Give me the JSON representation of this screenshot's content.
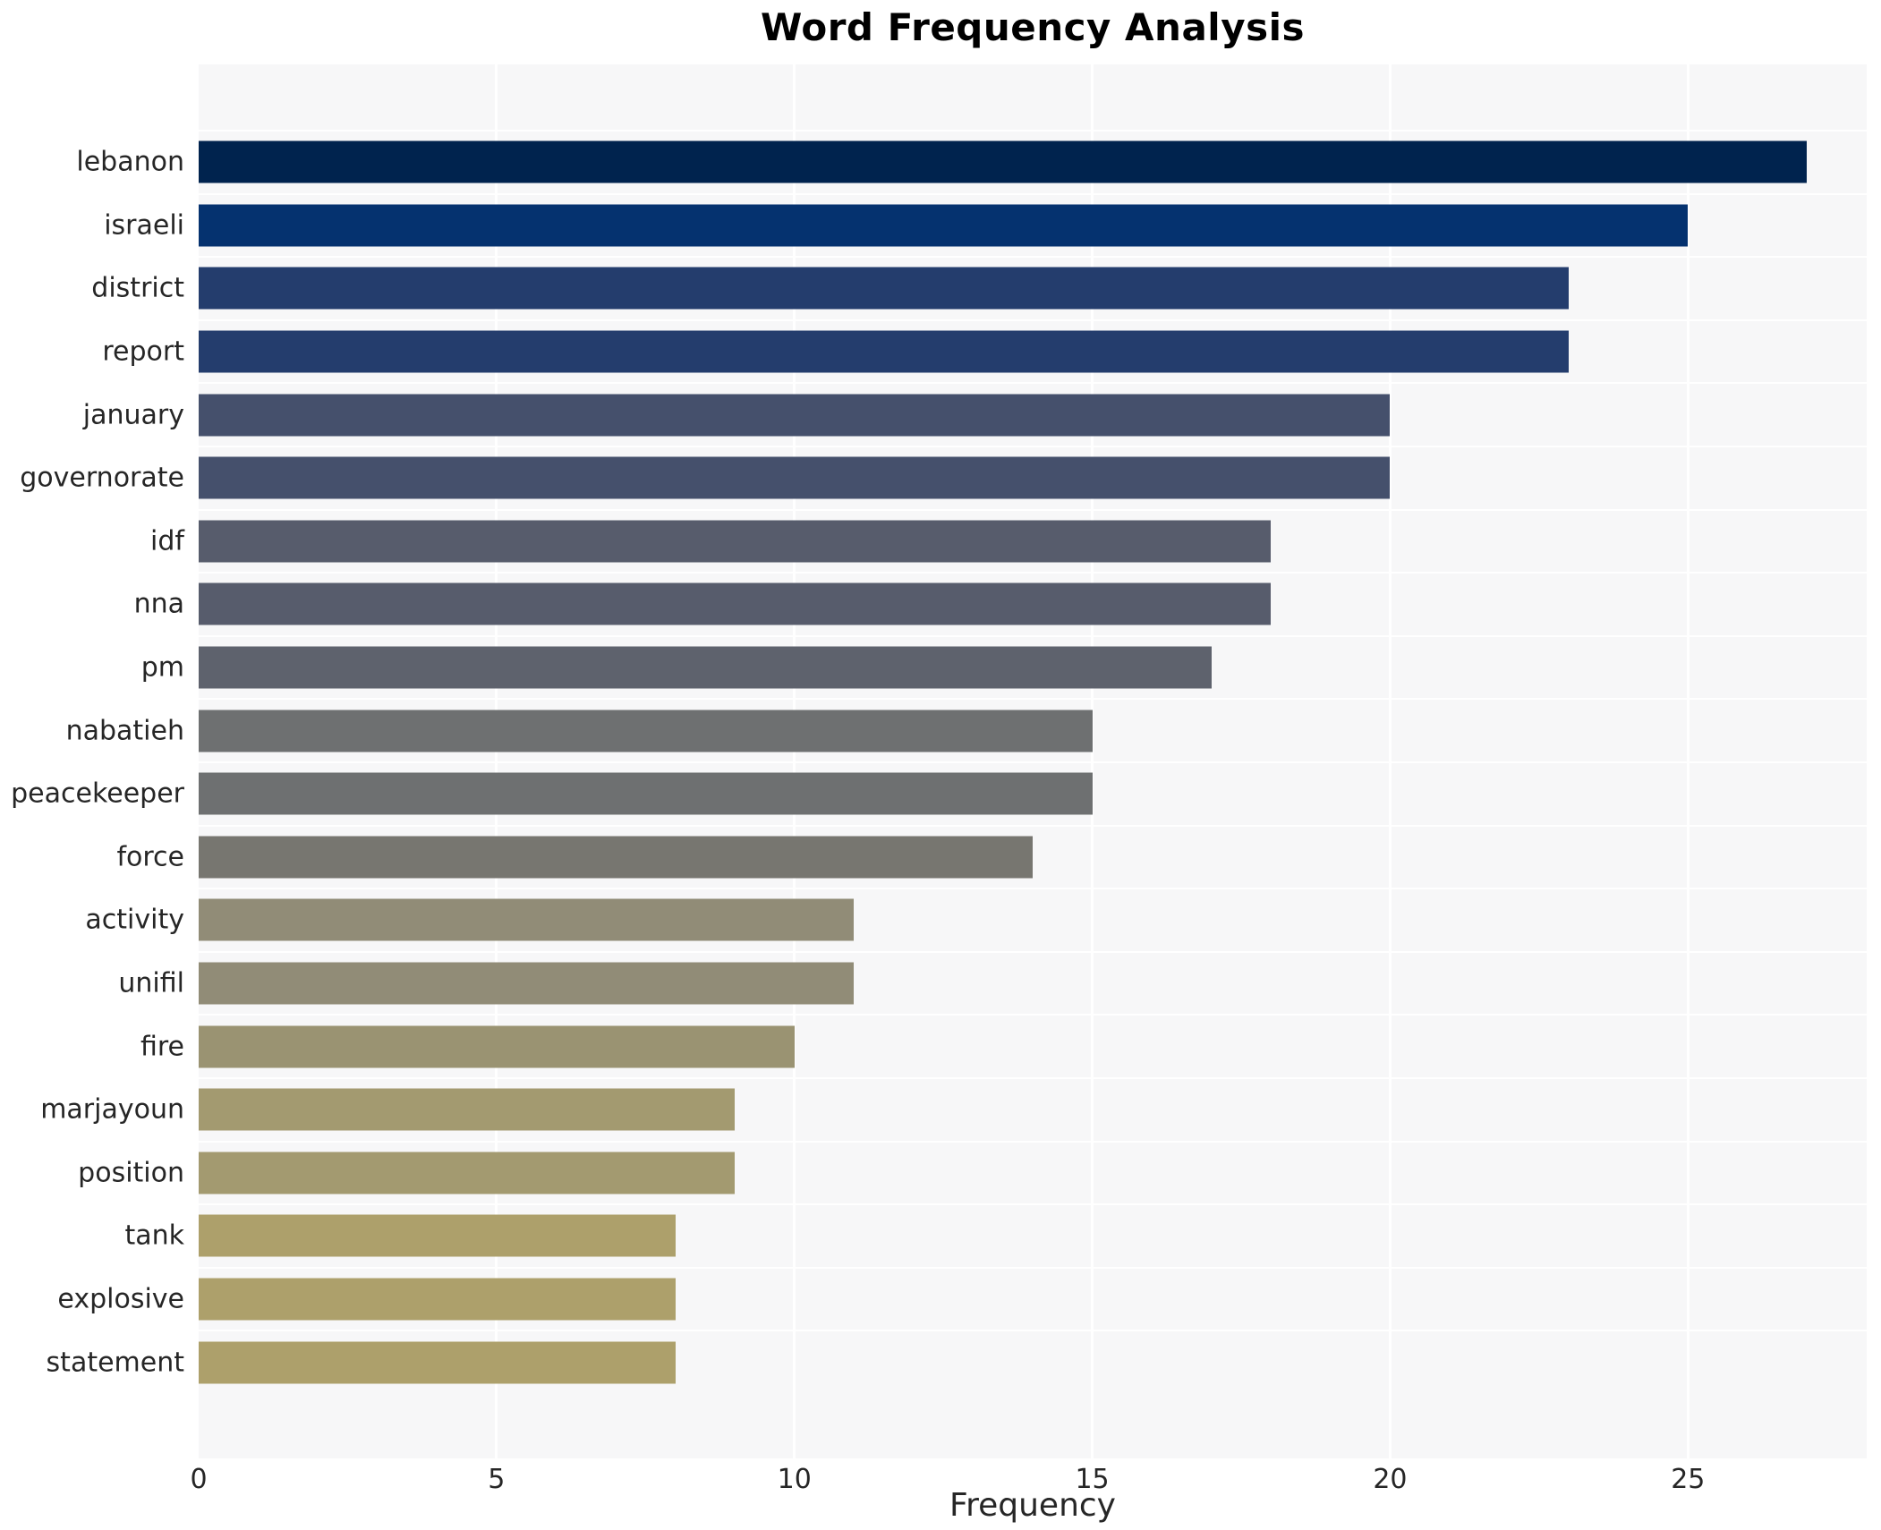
{
  "chart_data": {
    "type": "bar",
    "orientation": "horizontal",
    "title": "Word Frequency Analysis",
    "xlabel": "Frequency",
    "ylabel": "",
    "categories": [
      "lebanon",
      "israeli",
      "district",
      "report",
      "january",
      "governorate",
      "idf",
      "nna",
      "pm",
      "nabatieh",
      "peacekeeper",
      "force",
      "activity",
      "unifil",
      "fire",
      "marjayoun",
      "position",
      "tank",
      "explosive",
      "statement"
    ],
    "values": [
      27,
      25,
      23,
      23,
      20,
      20,
      18,
      18,
      17,
      15,
      15,
      14,
      11,
      11,
      10,
      9,
      9,
      8,
      8,
      8
    ],
    "bar_colors": [
      "#00234e",
      "#05326f",
      "#243d6d",
      "#243d6d",
      "#45506c",
      "#45506c",
      "#575c6c",
      "#575c6c",
      "#5e626d",
      "#6e7071",
      "#6e7071",
      "#777670",
      "#918c77",
      "#918c77",
      "#9a9372",
      "#a39a70",
      "#a39a70",
      "#ada06b",
      "#ada06b",
      "#ada06b"
    ],
    "colormap": "cividis",
    "xlim": [
      0,
      28
    ],
    "xticks": [
      0,
      5,
      10,
      15,
      20,
      25
    ],
    "grid": true,
    "gridline_color": "#ffffff",
    "plot_background": "#f7f7f8",
    "figure_background": "#ffffff",
    "legend": "none"
  }
}
